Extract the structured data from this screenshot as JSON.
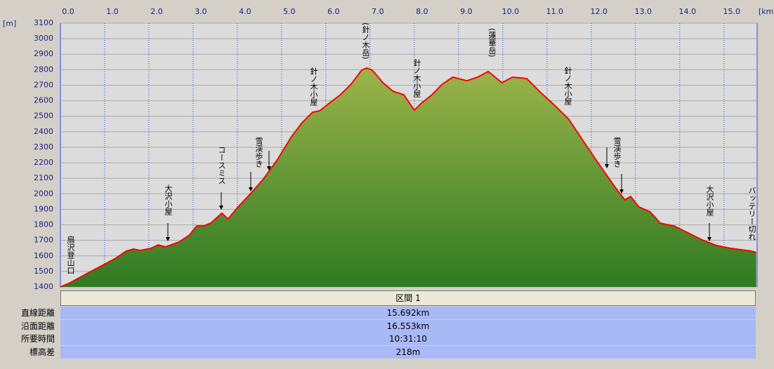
{
  "chart_data": {
    "type": "area",
    "x_unit": "[km]",
    "y_unit": "[m]",
    "x": [
      0,
      0.22,
      0.54,
      1.02,
      1.25,
      1.49,
      1.65,
      1.81,
      2.05,
      2.21,
      2.37,
      2.68,
      2.92,
      3.08,
      3.24,
      3.4,
      3.65,
      3.79,
      4.03,
      4.27,
      4.59,
      4.9,
      5.22,
      5.46,
      5.7,
      5.86,
      6.1,
      6.33,
      6.57,
      6.81,
      6.92,
      7.05,
      7.29,
      7.52,
      7.76,
      8.0,
      8.16,
      8.4,
      8.63,
      8.87,
      9.19,
      9.43,
      9.67,
      9.98,
      10.22,
      10.54,
      10.86,
      11.17,
      11.49,
      11.81,
      12.13,
      12.44,
      12.6,
      12.76,
      12.89,
      13.08,
      13.33,
      13.56,
      13.87,
      14.19,
      14.51,
      14.83,
      14.98,
      15.14,
      15.38,
      15.62,
      15.73
    ],
    "values": [
      1400,
      1427,
      1477,
      1549,
      1585,
      1631,
      1644,
      1635,
      1649,
      1671,
      1658,
      1689,
      1735,
      1793,
      1793,
      1811,
      1875,
      1838,
      1920,
      1992,
      2096,
      2218,
      2367,
      2458,
      2526,
      2535,
      2589,
      2639,
      2706,
      2797,
      2811,
      2797,
      2716,
      2661,
      2639,
      2539,
      2584,
      2639,
      2706,
      2752,
      2729,
      2752,
      2788,
      2716,
      2752,
      2743,
      2652,
      2571,
      2481,
      2345,
      2209,
      2083,
      2019,
      1961,
      1983,
      1915,
      1884,
      1811,
      1793,
      1748,
      1703,
      1667,
      1658,
      1649,
      1640,
      1631,
      1622
    ],
    "line_color": "#ff0000",
    "xlim": [
      0,
      15.75
    ],
    "xticks": [
      {
        "value": 0,
        "label": "0.0"
      },
      {
        "value": 1,
        "label": "1.0"
      },
      {
        "value": 2,
        "label": "2.0"
      },
      {
        "value": 3,
        "label": "3.0"
      },
      {
        "value": 4,
        "label": "4.0"
      },
      {
        "value": 5,
        "label": "5.0"
      },
      {
        "value": 6,
        "label": "6.0"
      },
      {
        "value": 7,
        "label": "7.0"
      },
      {
        "value": 8,
        "label": "8.0"
      },
      {
        "value": 9,
        "label": "9.0"
      },
      {
        "value": 10,
        "label": "10.0"
      },
      {
        "value": 11,
        "label": "11.0"
      },
      {
        "value": 12,
        "label": "12.0"
      },
      {
        "value": 13,
        "label": "13.0"
      },
      {
        "value": 14,
        "label": "14.0"
      },
      {
        "value": 15,
        "label": "15.0"
      }
    ],
    "ylim": [
      1400,
      3100
    ],
    "yticks": [
      1400,
      1500,
      1600,
      1700,
      1800,
      1900,
      2000,
      2100,
      2200,
      2300,
      2400,
      2500,
      2600,
      2700,
      2800,
      2900,
      3000,
      3100
    ],
    "grid": true,
    "annotations": [
      "扇沢登山口",
      "大沢小屋",
      "コースミス",
      "雪渓歩き",
      "針ノ木小屋",
      "(針ノ木岳)",
      "針ノ木小屋",
      "(蓮華岳)",
      "針ノ木小屋",
      "雪渓歩き",
      "大沢小屋",
      "バッテリー切れ"
    ]
  },
  "table": {
    "header": "区間 1",
    "rows": [
      [
        "直線距離",
        "15.692km"
      ],
      [
        "沿面距離",
        "16.553km"
      ],
      [
        "所要時間",
        "10:31:10"
      ],
      [
        "標高差",
        "218m"
      ]
    ]
  }
}
